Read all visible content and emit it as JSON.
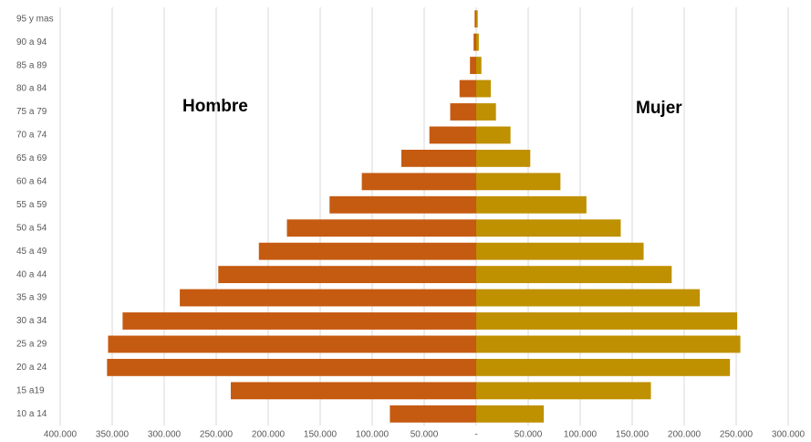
{
  "chart_data": {
    "type": "pyramid",
    "categories": [
      "10 a 14",
      "15  a19",
      "20 a 24",
      "25 a 29",
      "30 a 34",
      "35 a 39",
      "40 a 44",
      "45 a 49",
      "50 a 54",
      "55 a 59",
      "60 a 64",
      "65 a 69",
      "70 a 74",
      "75 a 79",
      "80 a 84",
      "85 a 89",
      "90 a 94",
      "95 y mas"
    ],
    "series": [
      {
        "name": "Hombre",
        "color": "#c55a11",
        "values": [
          -83000,
          -236000,
          -355000,
          -354000,
          -340000,
          -285000,
          -248000,
          -209000,
          -182000,
          -141000,
          -110000,
          -72000,
          -45000,
          -25000,
          -16000,
          -6000,
          -2500,
          -1500
        ]
      },
      {
        "name": "Mujer",
        "color": "#bf9000",
        "values": [
          65000,
          168000,
          244000,
          254000,
          251000,
          215000,
          188000,
          161000,
          139000,
          106000,
          81000,
          52000,
          33000,
          19000,
          14000,
          5000,
          2500,
          1500
        ]
      }
    ],
    "xlim": [
      -400000,
      300000
    ],
    "xticks": [
      {
        "value": -400000,
        "label": "400.000"
      },
      {
        "value": -350000,
        "label": "350.000"
      },
      {
        "value": -300000,
        "label": "300.000"
      },
      {
        "value": -250000,
        "label": "250.000"
      },
      {
        "value": -200000,
        "label": "200.000"
      },
      {
        "value": -150000,
        "label": "150.000"
      },
      {
        "value": -100000,
        "label": "100.000"
      },
      {
        "value": -50000,
        "label": "50.000"
      },
      {
        "value": 0,
        "label": "-"
      },
      {
        "value": 50000,
        "label": "50.000"
      },
      {
        "value": 100000,
        "label": "100.000"
      },
      {
        "value": 150000,
        "label": "150.000"
      },
      {
        "value": 200000,
        "label": "200.000"
      },
      {
        "value": 250000,
        "label": "250.000"
      },
      {
        "value": 300000,
        "label": "300.000"
      }
    ],
    "grid": true
  }
}
